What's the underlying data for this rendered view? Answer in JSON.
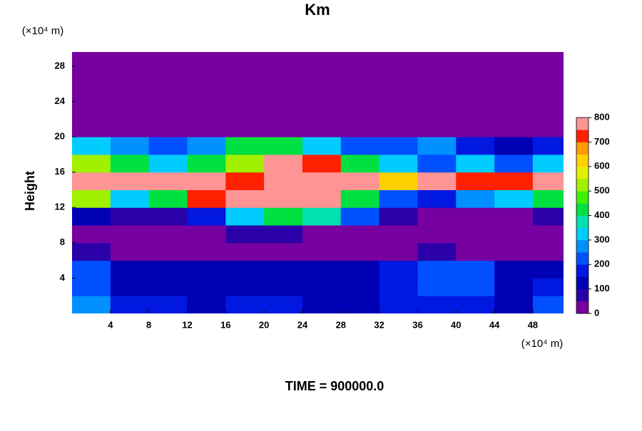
{
  "chart_data": {
    "type": "heatmap",
    "title": "Km",
    "ylabel": "Height",
    "y_unit": "(×10⁴ m)",
    "x_unit": "(×10⁴ m)",
    "footer": "TIME = 900000.0",
    "x": [
      2,
      6,
      10,
      14,
      18,
      22,
      26,
      30,
      34,
      38,
      42,
      46,
      50
    ],
    "y": [
      1,
      3,
      5,
      7,
      9,
      11,
      13,
      15,
      17,
      19,
      21,
      23,
      25,
      27,
      29
    ],
    "z": [
      [
        250,
        150,
        150,
        140,
        150,
        150,
        140,
        140,
        150,
        160,
        150,
        140,
        200
      ],
      [
        220,
        130,
        130,
        120,
        130,
        120,
        130,
        120,
        150,
        220,
        230,
        120,
        150
      ],
      [
        200,
        140,
        120,
        120,
        110,
        110,
        120,
        120,
        160,
        230,
        200,
        120,
        140
      ],
      [
        60,
        40,
        30,
        30,
        30,
        40,
        30,
        30,
        40,
        60,
        40,
        30,
        40
      ],
      [
        10,
        10,
        20,
        30,
        50,
        60,
        40,
        30,
        10,
        10,
        10,
        10,
        10
      ],
      [
        100,
        50,
        80,
        150,
        300,
        400,
        350,
        200,
        50,
        20,
        30,
        30,
        50
      ],
      [
        500,
        300,
        400,
        700,
        800,
        800,
        800,
        400,
        200,
        150,
        250,
        300,
        400
      ],
      [
        800,
        800,
        800,
        800,
        700,
        800,
        800,
        800,
        600,
        800,
        700,
        700,
        800
      ],
      [
        500,
        400,
        300,
        400,
        500,
        800,
        700,
        400,
        300,
        200,
        300,
        200,
        300
      ],
      [
        300,
        250,
        200,
        250,
        400,
        400,
        300,
        200,
        200,
        250,
        150,
        100,
        150
      ],
      [
        0,
        0,
        0,
        0,
        0,
        0,
        0,
        0,
        0,
        0,
        0,
        0,
        0
      ],
      [
        0,
        0,
        0,
        0,
        0,
        0,
        0,
        0,
        0,
        0,
        0,
        0,
        0
      ],
      [
        0,
        0,
        0,
        0,
        0,
        0,
        0,
        0,
        0,
        0,
        0,
        0,
        0
      ],
      [
        0,
        0,
        0,
        0,
        0,
        0,
        0,
        0,
        0,
        0,
        0,
        0,
        0
      ],
      [
        0,
        0,
        0,
        0,
        0,
        0,
        0,
        0,
        0,
        0,
        0,
        0,
        0
      ]
    ],
    "xlim": [
      0,
      51.2
    ],
    "ylim": [
      0,
      29.6
    ],
    "xticks": [
      4,
      8,
      12,
      16,
      20,
      24,
      28,
      32,
      36,
      40,
      44,
      48
    ],
    "yticks": [
      4,
      8,
      12,
      16,
      20,
      24,
      28
    ],
    "zlim": [
      0,
      800
    ],
    "level_step": 50,
    "zticks": [
      0,
      100,
      200,
      300,
      400,
      500,
      600,
      700,
      800
    ],
    "colorscale": [
      "#7700a0",
      "#2a00a8",
      "#0000b4",
      "#0018e0",
      "#0050ff",
      "#0090ff",
      "#00ccff",
      "#00e0b0",
      "#00e040",
      "#40f000",
      "#a0f000",
      "#e0f000",
      "#ffd000",
      "#ff9a00",
      "#ff2000",
      "#ff9494"
    ]
  }
}
